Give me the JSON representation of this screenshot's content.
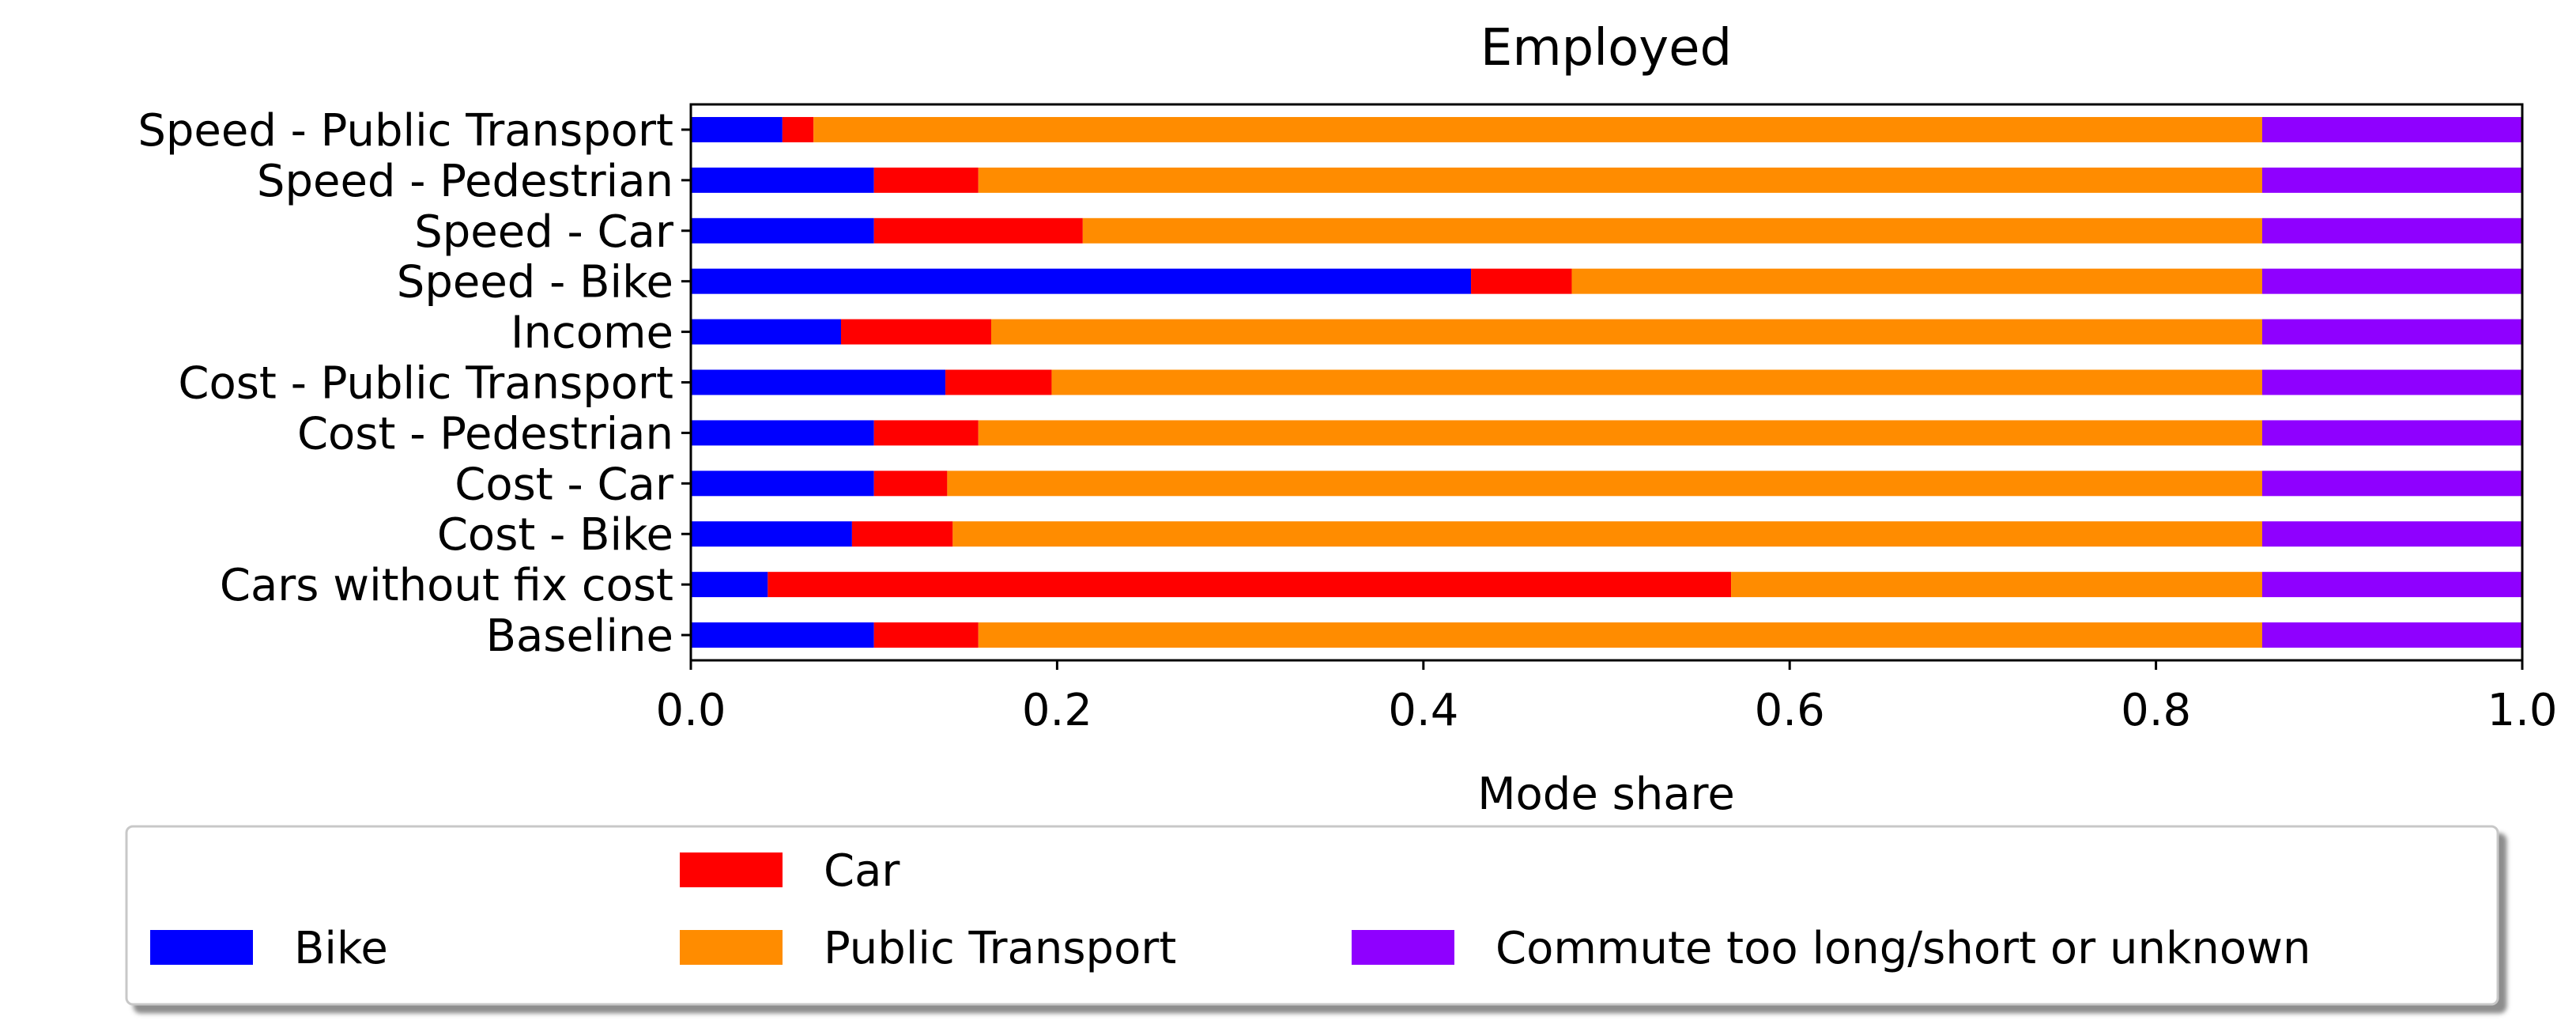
{
  "chart_data": {
    "type": "bar",
    "orientation": "horizontal",
    "stacked": true,
    "title": "Employed",
    "xlabel": "Mode share",
    "ylabel": "",
    "xlim": [
      0.0,
      1.0
    ],
    "xticks": [
      "0.0",
      "0.2",
      "0.4",
      "0.6",
      "0.8",
      "1.0"
    ],
    "grid": false,
    "legend_position": "bottom",
    "categories": [
      "Baseline",
      "Cars without fix cost",
      "Cost - Bike",
      "Cost - Car",
      "Cost - Pedestrian",
      "Cost - Public Transport",
      "Income",
      "Speed - Bike",
      "Speed - Car",
      "Speed - Pedestrian",
      "Speed - Public Transport"
    ],
    "series": [
      {
        "name": "Bike",
        "color": "#0000ff",
        "values": [
          0.1,
          0.042,
          0.088,
          0.1,
          0.1,
          0.139,
          0.082,
          0.426,
          0.1,
          0.1,
          0.05
        ]
      },
      {
        "name": "Car",
        "color": "#ff0000",
        "values": [
          0.057,
          0.526,
          0.055,
          0.04,
          0.057,
          0.058,
          0.082,
          0.055,
          0.114,
          0.057,
          0.017
        ]
      },
      {
        "name": "Public Transport",
        "color": "#ff8c00",
        "values": [
          0.701,
          0.29,
          0.715,
          0.718,
          0.701,
          0.661,
          0.694,
          0.377,
          0.644,
          0.701,
          0.791
        ]
      },
      {
        "name": "Commute too long/short or unknown",
        "color": "#8f00ff",
        "values": [
          0.142,
          0.142,
          0.142,
          0.142,
          0.142,
          0.142,
          0.142,
          0.142,
          0.142,
          0.142,
          0.142
        ]
      }
    ]
  }
}
